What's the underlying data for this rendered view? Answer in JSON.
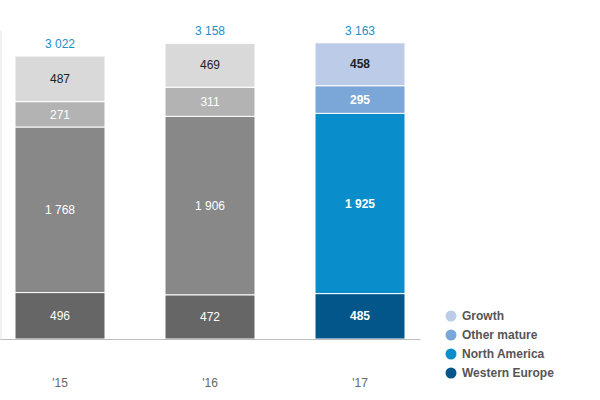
{
  "chart_data": {
    "type": "bar",
    "stacked": true,
    "data_labels": true,
    "tick_labels": "x",
    "legend": "bottom-right",
    "categories": [
      "'15",
      "'16",
      "'17"
    ],
    "ylim": [
      0,
      3300
    ],
    "totals": [
      3022,
      3158,
      3163
    ],
    "total_labels": [
      "3 022",
      "3 158",
      "3 163"
    ],
    "series": [
      {
        "name": "Western Europe",
        "color": "#02568a",
        "colors": [
          "#666666",
          "#666666",
          "#02568a"
        ],
        "values": [
          496,
          472,
          485
        ],
        "value_labels": [
          "496",
          "472",
          "485"
        ]
      },
      {
        "name": "North America",
        "color": "#0a8ecb",
        "colors": [
          "#888888",
          "#888888",
          "#0a8ecb"
        ],
        "values": [
          1768,
          1906,
          1925
        ],
        "value_labels": [
          "1 768",
          "1 906",
          "1 925"
        ]
      },
      {
        "name": "Other mature",
        "color": "#7aa6d8",
        "colors": [
          "#b3b3b3",
          "#b3b3b3",
          "#7aa6d8"
        ],
        "values": [
          271,
          311,
          295
        ],
        "value_labels": [
          "271",
          "311",
          "295"
        ]
      },
      {
        "name": "Growth",
        "color": "#bccbe8",
        "colors": [
          "#d9d9d9",
          "#d9d9d9",
          "#bccbe8"
        ],
        "values": [
          487,
          469,
          458
        ],
        "value_labels": [
          "487",
          "469",
          "458"
        ]
      }
    ]
  }
}
